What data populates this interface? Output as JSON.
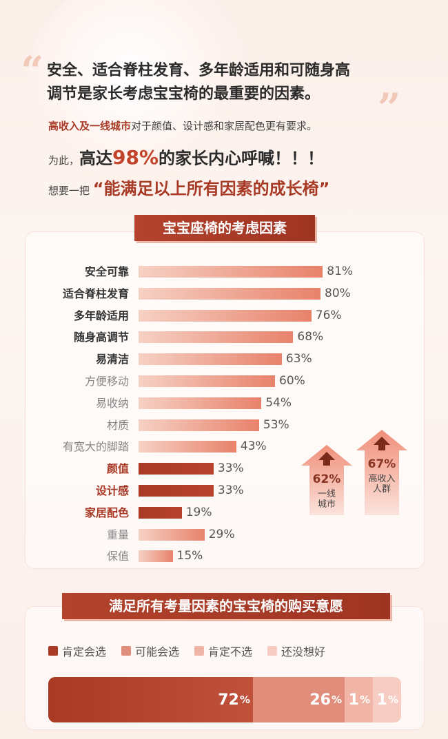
{
  "header": {
    "headline_line1": "安全、适合脊柱发育、多年龄适用和可随身高",
    "headline_line2": "调节是家长考虑宝宝椅的最重要的因素。",
    "sub_highlight": "高收入及一线城市",
    "sub_rest": "对于颜值、设计感和家居配色更有要求。",
    "cry_prefix": "为此，",
    "cry_big1": "高达",
    "cry_pct": "98%",
    "cry_big2": "的家长内心呼喊！！！",
    "want_prefix": "想要一把",
    "want_big": "“能满足以上所有因素的成长椅”"
  },
  "chart_data": [
    {
      "type": "bar",
      "title": "宝宝座椅的考虑因素",
      "categories": [
        "安全可靠",
        "适合脊柱发育",
        "多年龄适用",
        "随身高调节",
        "易清洁",
        "方便移动",
        "易收纳",
        "材质",
        "有宽大的脚踏",
        "颜值",
        "设计感",
        "家居配色",
        "重量",
        "保值"
      ],
      "values": [
        81,
        80,
        76,
        68,
        63,
        60,
        54,
        53,
        43,
        33,
        33,
        19,
        29,
        15
      ],
      "value_labels": [
        "81%",
        "80%",
        "76%",
        "68%",
        "63%",
        "60%",
        "54%",
        "53%",
        "43%",
        "33%",
        "33%",
        "19%",
        "29%",
        "15%"
      ],
      "label_styles": [
        "bold",
        "bold",
        "bold",
        "bold",
        "bold",
        "normal",
        "normal",
        "normal",
        "normal",
        "accent",
        "accent",
        "accent",
        "normal",
        "normal"
      ],
      "callouts": [
        {
          "value_label": "62%",
          "text_line1": "一线",
          "text_line2": "城市"
        },
        {
          "value_label": "67%",
          "text_line1": "高收入",
          "text_line2": "人群"
        }
      ],
      "colors": {
        "light": "#f6d1c4",
        "mid": "#e8826b",
        "dark": "#a83a26"
      }
    },
    {
      "type": "bar",
      "title": "满足所有考量因素的宝宝椅的购买意愿",
      "series": [
        {
          "name": "肯定会选",
          "values": [
            72
          ],
          "label": "72",
          "color": "#a83a26"
        },
        {
          "name": "可能会选",
          "values": [
            26
          ],
          "label": "26",
          "color": "#e08d7b"
        },
        {
          "name": "肯定不选",
          "values": [
            1
          ],
          "label": "1",
          "color": "#f1b5a7"
        },
        {
          "name": "还没想好",
          "values": [
            1
          ],
          "label": "1",
          "color": "#f7cdc3"
        }
      ],
      "unit": "%"
    }
  ]
}
